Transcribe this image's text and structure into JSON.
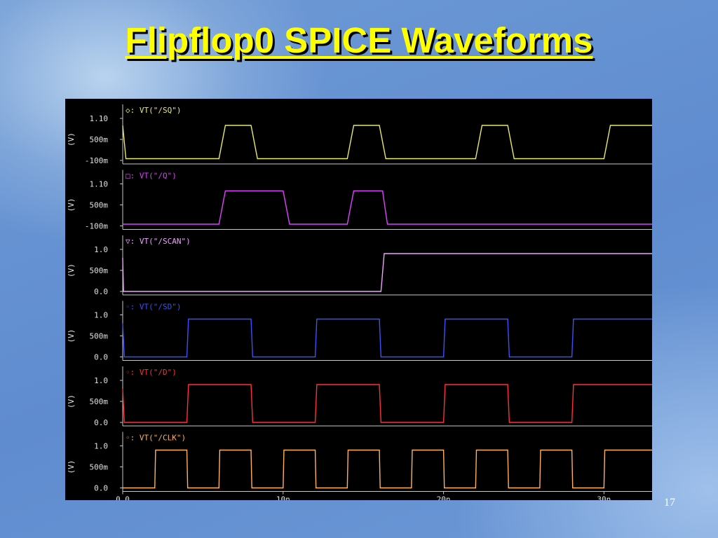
{
  "slide": {
    "title": "Flipflop0 SPICE Waveforms",
    "page_number": "17"
  },
  "chart_data": {
    "type": "line",
    "x_unit": "s",
    "xlim": [
      0,
      33
    ],
    "x_ticks": [
      "0.0",
      "10n",
      "20n",
      "30n"
    ],
    "x_tick_values": [
      0,
      10,
      20,
      30
    ],
    "grid": false,
    "panels": [
      {
        "name": "VT(\"/SQ\")",
        "color": "#e8e86a",
        "ylabel": "(V)",
        "ylim": [
          -0.1,
          1.1
        ],
        "y_ticks": [
          "1.10",
          "500m",
          "-100m"
        ],
        "y_tick_values": [
          1.1,
          0.5,
          -0.1
        ],
        "marker": "◇",
        "x": [
          0,
          0.2,
          6,
          6.4,
          8,
          8.4,
          14,
          14.4,
          16,
          16.4,
          22,
          22.4,
          24,
          24.4,
          30,
          30.4,
          33
        ],
        "y": [
          0.9,
          -0.05,
          -0.05,
          0.9,
          0.9,
          -0.05,
          -0.05,
          0.9,
          0.9,
          -0.05,
          -0.05,
          0.9,
          0.9,
          -0.05,
          -0.05,
          0.9,
          0.9
        ]
      },
      {
        "name": "VT(\"/Q\")",
        "color": "#e040ff",
        "ylabel": "(V)",
        "ylim": [
          -0.1,
          1.1
        ],
        "y_ticks": [
          "1.10",
          "500m",
          "-100m"
        ],
        "y_tick_values": [
          1.1,
          0.5,
          -0.1
        ],
        "marker": "□",
        "x": [
          0,
          6,
          6.4,
          10,
          10.4,
          14,
          14.4,
          16.2,
          16.5,
          33
        ],
        "y": [
          -0.05,
          -0.05,
          0.9,
          0.9,
          -0.05,
          -0.05,
          0.9,
          0.9,
          -0.05,
          -0.05
        ]
      },
      {
        "name": "VT(\"/SCAN\")",
        "color": "#f0a0ff",
        "ylabel": "(V)",
        "ylim": [
          0,
          1.0
        ],
        "y_ticks": [
          "1.0",
          "500m",
          "0.0"
        ],
        "y_tick_values": [
          1.0,
          0.5,
          0.0
        ],
        "marker": "▽",
        "x": [
          0,
          0.05,
          0.1,
          16.1,
          16.3,
          33
        ],
        "y": [
          0.8,
          0.0,
          0.0,
          0.0,
          0.9,
          0.9
        ]
      },
      {
        "name": "VT(\"/SD\")",
        "color": "#3a50ff",
        "ylabel": "(V)",
        "ylim": [
          0,
          1.0
        ],
        "y_ticks": [
          "1.0",
          "500m",
          "0.0"
        ],
        "y_tick_values": [
          1.0,
          0.5,
          0.0
        ],
        "marker": "◦",
        "x": [
          0,
          0.1,
          4,
          4.1,
          8,
          8.1,
          12,
          12.1,
          16,
          16.1,
          20,
          20.1,
          24,
          24.1,
          28,
          28.1,
          33
        ],
        "y": [
          0.8,
          0.0,
          0.0,
          0.9,
          0.9,
          0.0,
          0.0,
          0.9,
          0.9,
          0.0,
          0.0,
          0.9,
          0.9,
          0.0,
          0.0,
          0.9,
          0.9
        ]
      },
      {
        "name": "VT(\"/D\")",
        "color": "#ff3030",
        "ylabel": "(V)",
        "ylim": [
          0,
          1.0
        ],
        "y_ticks": [
          "1.0",
          "500m",
          "0.0"
        ],
        "y_tick_values": [
          1.0,
          0.5,
          0.0
        ],
        "marker": "◦",
        "x": [
          0,
          0.1,
          4,
          4.1,
          8,
          8.1,
          12,
          12.1,
          16,
          16.1,
          20,
          20.1,
          24,
          24.1,
          28,
          28.1,
          33
        ],
        "y": [
          0.8,
          0.0,
          0.0,
          0.9,
          0.9,
          0.0,
          0.0,
          0.9,
          0.9,
          0.0,
          0.0,
          0.9,
          0.9,
          0.0,
          0.0,
          0.9,
          0.9
        ]
      },
      {
        "name": "VT(\"/CLK\")",
        "color": "#ffb060",
        "ylabel": "(V)",
        "ylim": [
          0,
          1.0
        ],
        "y_ticks": [
          "1.0",
          "500m",
          "0.0"
        ],
        "y_tick_values": [
          1.0,
          0.5,
          0.0
        ],
        "marker": "◦",
        "x": [
          0,
          2,
          2.05,
          4,
          4.05,
          6,
          6.05,
          8,
          8.05,
          10,
          10.05,
          12,
          12.05,
          14,
          14.05,
          16,
          16.05,
          18,
          18.05,
          20,
          20.05,
          22,
          22.05,
          24,
          24.05,
          26,
          26.05,
          28,
          28.05,
          30,
          30.05,
          33
        ],
        "y": [
          0.0,
          0.0,
          0.9,
          0.9,
          0.0,
          0.0,
          0.9,
          0.9,
          0.0,
          0.0,
          0.9,
          0.9,
          0.0,
          0.0,
          0.9,
          0.9,
          0.0,
          0.0,
          0.9,
          0.9,
          0.0,
          0.0,
          0.9,
          0.9,
          0.0,
          0.0,
          0.9,
          0.9,
          0.0,
          0.0,
          0.9,
          0.9
        ]
      }
    ]
  }
}
